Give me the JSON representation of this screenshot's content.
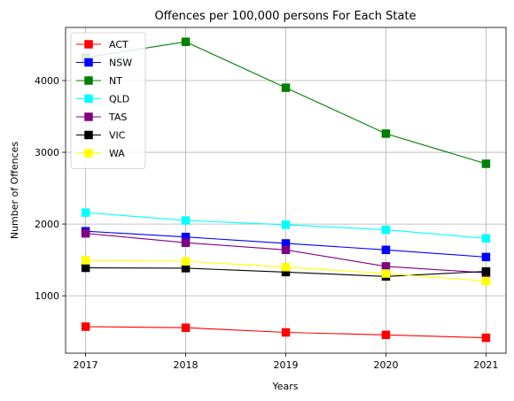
{
  "chart_data": {
    "type": "line",
    "title": "Offences per 100,000 persons For Each State",
    "xlabel": "Years",
    "ylabel": "Number of Offences",
    "x": [
      2017,
      2018,
      2019,
      2020,
      2021
    ],
    "x_tick_labels": [
      "2017",
      "2018",
      "2019",
      "2020",
      "2021"
    ],
    "y_ticks": [
      1000,
      2000,
      3000,
      4000
    ],
    "y_tick_labels": [
      "1000",
      "2000",
      "3000",
      "4000"
    ],
    "xlim": [
      2016.8,
      2021.2
    ],
    "ylim": [
      200,
      4740
    ],
    "grid": true,
    "legend_position": "top-left",
    "series": [
      {
        "name": "ACT",
        "color": "#ff0000",
        "values": [
          570,
          555,
          490,
          455,
          415
        ]
      },
      {
        "name": "NSW",
        "color": "#0000ff",
        "values": [
          1900,
          1820,
          1730,
          1640,
          1540
        ]
      },
      {
        "name": "NT",
        "color": "#008000",
        "values": [
          4320,
          4540,
          3900,
          3260,
          2840
        ]
      },
      {
        "name": "QLD",
        "color": "#00ffff",
        "values": [
          2160,
          2050,
          1990,
          1920,
          1800
        ]
      },
      {
        "name": "TAS",
        "color": "#800080",
        "values": [
          1870,
          1740,
          1640,
          1410,
          1320
        ]
      },
      {
        "name": "VIC",
        "color": "#000000",
        "values": [
          1390,
          1385,
          1330,
          1270,
          1340
        ]
      },
      {
        "name": "WA",
        "color": "#ffff00",
        "values": [
          1495,
          1480,
          1400,
          1310,
          1205
        ]
      }
    ]
  }
}
